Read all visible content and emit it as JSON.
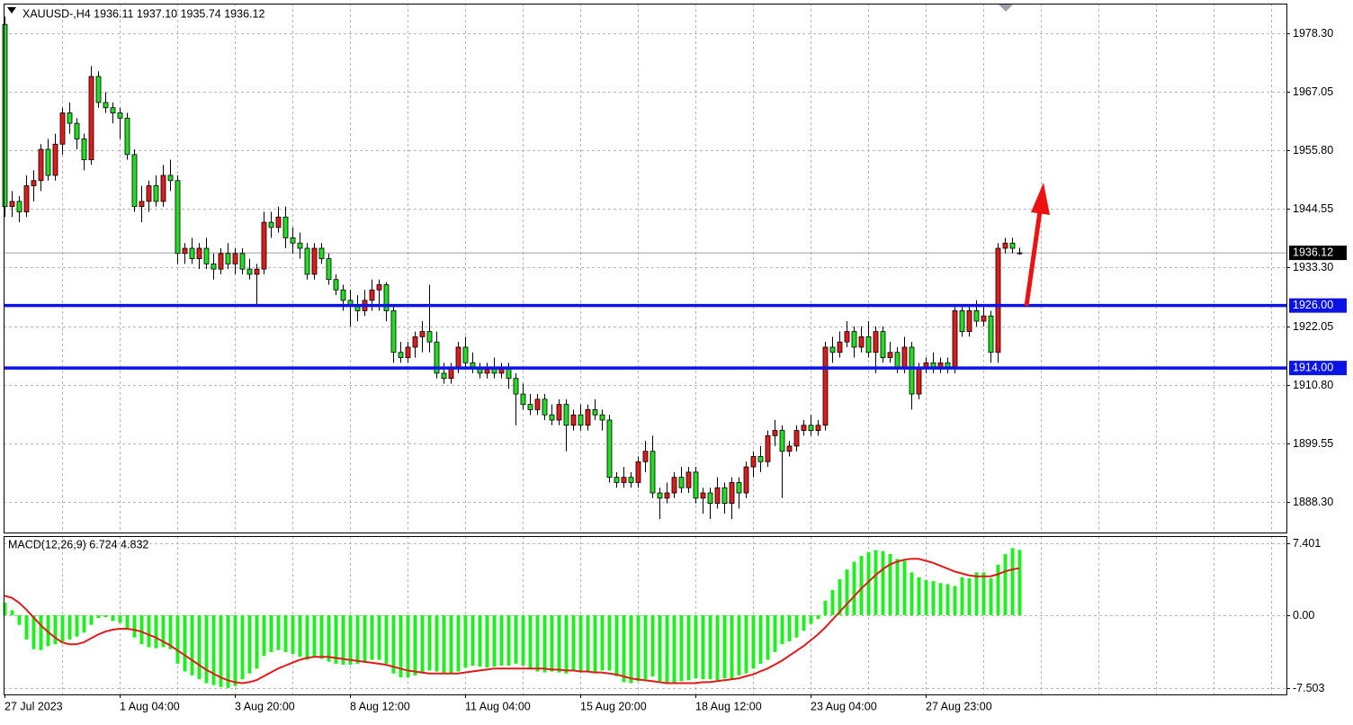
{
  "chart_data": {
    "type": "candlestick",
    "title": "XAUUSD-,H4  1936.11 1937.10 1935.74 1936.12",
    "bull_color": "#e01b1b",
    "bear_color": "#22dd22",
    "ylim": [
      1882.4,
      1984.0
    ],
    "yticks": [
      {
        "value": 1978.3,
        "label": "1978.30"
      },
      1967.05,
      {
        "value": 1955.8,
        "label": "1955.80"
      },
      1944.55,
      {
        "value": 1933.3,
        "label": "1933.30"
      },
      1922.05,
      {
        "value": 1910.8,
        "label": "1910.80"
      },
      1899.55,
      {
        "value": 1888.3,
        "label": "1888.30"
      }
    ],
    "grid": true,
    "last_price": 1936.12,
    "levels": [
      {
        "value": 1926,
        "label": "1926.00"
      },
      {
        "value": 1914,
        "label": "1914.00"
      }
    ],
    "level_color": "#0a14e6",
    "categories": [
      "27 Jul 2023",
      null,
      null,
      null,
      null,
      null,
      null,
      null,
      null,
      null,
      null,
      null,
      null,
      null,
      null,
      null,
      "1 Aug 04:00",
      null,
      null,
      null,
      null,
      null,
      null,
      null,
      null,
      null,
      null,
      null,
      null,
      null,
      null,
      null,
      "3 Aug 20:00",
      null,
      null,
      null,
      null,
      null,
      null,
      null,
      null,
      null,
      null,
      null,
      null,
      null,
      null,
      null,
      "8 Aug 12:00",
      null,
      null,
      null,
      null,
      null,
      null,
      null,
      null,
      null,
      null,
      null,
      null,
      null,
      null,
      null,
      "11 Aug 04:00",
      null,
      null,
      null,
      null,
      null,
      null,
      null,
      null,
      null,
      null,
      null,
      null,
      null,
      null,
      null,
      "15 Aug 20:00",
      null,
      null,
      null,
      null,
      null,
      null,
      null,
      null,
      null,
      null,
      null,
      null,
      null,
      null,
      null,
      "18 Aug 12:00",
      null,
      null,
      null,
      null,
      null,
      null,
      null,
      null,
      null,
      null,
      null,
      null,
      null,
      null,
      null,
      "23 Aug 04:00",
      null,
      null,
      null,
      null,
      null,
      null,
      null,
      null,
      null,
      null,
      null,
      null,
      null,
      null,
      null,
      "27 Aug 23:00",
      null,
      null,
      null,
      null,
      null,
      null,
      null,
      null,
      null,
      null,
      null,
      null,
      null
    ],
    "candles": [
      [
        1980,
        1981.5,
        1943,
        1945
      ],
      [
        1945,
        1948,
        1943,
        1946
      ],
      [
        1946,
        1947,
        1942,
        1944
      ],
      [
        1944,
        1951,
        1943,
        1949
      ],
      [
        1949,
        1952,
        1946,
        1950
      ],
      [
        1950,
        1957,
        1948,
        1956
      ],
      [
        1956,
        1958,
        1950,
        1951
      ],
      [
        1951,
        1959,
        1950,
        1957
      ],
      [
        1957,
        1964,
        1955,
        1963
      ],
      [
        1963,
        1965,
        1959,
        1961
      ],
      [
        1961,
        1962,
        1956,
        1958
      ],
      [
        1958,
        1959,
        1952,
        1954
      ],
      [
        1954,
        1972,
        1953,
        1970
      ],
      [
        1970,
        1971,
        1964,
        1965
      ],
      [
        1965,
        1967,
        1963,
        1964
      ],
      [
        1964,
        1965,
        1961,
        1963
      ],
      [
        1963,
        1964,
        1958,
        1962
      ],
      [
        1962,
        1963,
        1954,
        1955
      ],
      [
        1955,
        1956,
        1944,
        1945
      ],
      [
        1945,
        1949,
        1942,
        1946
      ],
      [
        1946,
        1950,
        1944,
        1949
      ],
      [
        1949,
        1951,
        1945,
        1946
      ],
      [
        1946,
        1953,
        1945,
        1951
      ],
      [
        1951,
        1954,
        1948,
        1950
      ],
      [
        1950,
        1951,
        1934,
        1936
      ],
      [
        1936,
        1938,
        1934,
        1937
      ],
      [
        1937,
        1939,
        1934,
        1935
      ],
      [
        1935,
        1938,
        1933,
        1937
      ],
      [
        1937,
        1939,
        1933,
        1934
      ],
      [
        1934,
        1936,
        1931,
        1933
      ],
      [
        1933,
        1937,
        1932,
        1936
      ],
      [
        1936,
        1938,
        1933,
        1934
      ],
      [
        1934,
        1937,
        1932,
        1936
      ],
      [
        1936,
        1937,
        1932,
        1933
      ],
      [
        1933,
        1935,
        1931,
        1932
      ],
      [
        1932,
        1934,
        1926,
        1933
      ],
      [
        1933,
        1944,
        1932,
        1942
      ],
      [
        1942,
        1944,
        1939,
        1941
      ],
      [
        1941,
        1945,
        1940,
        1943
      ],
      [
        1943,
        1945,
        1937,
        1939
      ],
      [
        1939,
        1941,
        1936,
        1938
      ],
      [
        1938,
        1940,
        1935,
        1937
      ],
      [
        1937,
        1938,
        1931,
        1932
      ],
      [
        1932,
        1938,
        1931,
        1937
      ],
      [
        1937,
        1938,
        1934,
        1935
      ],
      [
        1935,
        1936,
        1930,
        1931
      ],
      [
        1931,
        1932,
        1928,
        1929
      ],
      [
        1929,
        1930,
        1925,
        1927
      ],
      [
        1927,
        1929,
        1922,
        1926
      ],
      [
        1926,
        1928,
        1923,
        1925
      ],
      [
        1925,
        1929,
        1924,
        1927
      ],
      [
        1927,
        1931,
        1925,
        1929
      ],
      [
        1929,
        1931,
        1925,
        1930
      ],
      [
        1930,
        1930.5,
        1923,
        1925
      ],
      [
        1925,
        1926,
        1915,
        1917
      ],
      [
        1917,
        1919,
        1915,
        1916
      ],
      [
        1916,
        1919,
        1915,
        1918
      ],
      [
        1918,
        1921,
        1916,
        1920
      ],
      [
        1920,
        1923,
        1917,
        1921
      ],
      [
        1921,
        1930,
        1917,
        1919
      ],
      [
        1919,
        1921,
        1912,
        1913
      ],
      [
        1913,
        1915,
        1911,
        1912
      ],
      [
        1912,
        1915,
        1911,
        1914
      ],
      [
        1914,
        1919,
        1913,
        1918
      ],
      [
        1918,
        1920,
        1914,
        1915
      ],
      [
        1915,
        1917,
        1913,
        1914
      ],
      [
        1914,
        1915,
        1912,
        1913
      ],
      [
        1913,
        1915,
        1912,
        1914
      ],
      [
        1914,
        1916,
        1912,
        1913
      ],
      [
        1913,
        1915,
        1912,
        1914
      ],
      [
        1914,
        1915,
        1910,
        1912
      ],
      [
        1912,
        1913,
        1903,
        1909
      ],
      [
        1909,
        1911,
        1906,
        1907
      ],
      [
        1907,
        1909,
        1905,
        1906
      ],
      [
        1906,
        1909,
        1905,
        1908
      ],
      [
        1908,
        1909,
        1904,
        1905
      ],
      [
        1905,
        1907,
        1903,
        1904
      ],
      [
        1904,
        1908,
        1903,
        1907
      ],
      [
        1907,
        1908,
        1898,
        1903
      ],
      [
        1903,
        1906,
        1902,
        1905
      ],
      [
        1905,
        1907,
        1902,
        1903
      ],
      [
        1903,
        1907,
        1902,
        1906
      ],
      [
        1906,
        1908,
        1904,
        1905
      ],
      [
        1905,
        1906,
        1902,
        1904
      ],
      [
        1904,
        1905,
        1892,
        1893
      ],
      [
        1893,
        1894,
        1891,
        1892
      ],
      [
        1892,
        1895,
        1891,
        1893
      ],
      [
        1893,
        1894,
        1891,
        1892
      ],
      [
        1892,
        1897,
        1891,
        1896
      ],
      [
        1896,
        1900,
        1894,
        1898
      ],
      [
        1898,
        1901,
        1889,
        1890
      ],
      [
        1890,
        1891,
        1885,
        1889
      ],
      [
        1889,
        1892,
        1888,
        1890
      ],
      [
        1890,
        1894,
        1889,
        1893
      ],
      [
        1893,
        1895,
        1890,
        1891
      ],
      [
        1891,
        1895,
        1890,
        1894
      ],
      [
        1894,
        1895,
        1888,
        1889
      ],
      [
        1889,
        1891,
        1886,
        1890
      ],
      [
        1890,
        1891,
        1885,
        1888
      ],
      [
        1888,
        1893,
        1887,
        1891
      ],
      [
        1891,
        1892,
        1886,
        1888
      ],
      [
        1888,
        1893,
        1885,
        1892
      ],
      [
        1892,
        1893,
        1887,
        1890
      ],
      [
        1890,
        1896,
        1889,
        1895
      ],
      [
        1895,
        1898,
        1893,
        1897
      ],
      [
        1897,
        1899,
        1894,
        1896
      ],
      [
        1896,
        1902,
        1895,
        1901
      ],
      [
        1901,
        1904,
        1899,
        1902
      ],
      [
        1902,
        1903,
        1889,
        1898
      ],
      [
        1898,
        1900,
        1897,
        1899
      ],
      [
        1899,
        1903,
        1898,
        1902
      ],
      [
        1902,
        1904,
        1901,
        1903
      ],
      [
        1903,
        1905,
        1901,
        1902
      ],
      [
        1902,
        1904,
        1901,
        1903
      ],
      [
        1903,
        1919,
        1902,
        1918
      ],
      [
        1918,
        1920,
        1915,
        1917
      ],
      [
        1917,
        1921,
        1916,
        1919
      ],
      [
        1919,
        1923,
        1918,
        1921
      ],
      [
        1921,
        1922,
        1916,
        1918
      ],
      [
        1918,
        1922,
        1917,
        1920
      ],
      [
        1920,
        1923,
        1916,
        1917
      ],
      [
        1917,
        1922,
        1913,
        1921
      ],
      [
        1921,
        1922,
        1915,
        1916
      ],
      [
        1916,
        1919,
        1915,
        1917
      ],
      [
        1917,
        1918,
        1913,
        1914
      ],
      [
        1914,
        1920,
        1913,
        1918
      ],
      [
        1918,
        1919,
        1906,
        1909
      ],
      [
        1909,
        1915,
        1908,
        1914
      ],
      [
        1914,
        1916,
        1913,
        1915
      ],
      [
        1915,
        1917,
        1913,
        1914
      ],
      [
        1914,
        1916,
        1913,
        1915
      ],
      [
        1915,
        1916,
        1913,
        1914
      ],
      [
        1914,
        1926,
        1913,
        1925
      ],
      [
        1925,
        1926,
        1920,
        1921
      ],
      [
        1921,
        1926,
        1920,
        1925
      ],
      [
        1925,
        1927,
        1922,
        1923
      ],
      [
        1923,
        1926,
        1922,
        1924
      ],
      [
        1924,
        1925,
        1915,
        1917
      ],
      [
        1917,
        1938,
        1915,
        1937
      ],
      [
        1937,
        1939,
        1936,
        1938
      ],
      [
        1938,
        1939,
        1936,
        1937
      ],
      [
        1936.11,
        1937.1,
        1935.74,
        1936.12
      ]
    ],
    "macd": {
      "label": "MACD(12,26,9) 6.724 4.832",
      "ylim": [
        -8.16,
        8.14
      ],
      "yticks": [
        7.401,
        {
          "value": 0,
          "label": "0.00"
        },
        -7.503
      ],
      "series": [
        {
          "color": "#22ee22",
          "values": [
            1.3,
            0.5,
            -1.0,
            -2.5,
            -3.5,
            -3.6,
            -3.2,
            -3.0,
            -2.7,
            -2.5,
            -2.2,
            -1.8,
            -1.0,
            -0.3,
            -0.2,
            -0.6,
            -0.8,
            -1.4,
            -2.3,
            -3.0,
            -3.3,
            -3.4,
            -3.3,
            -3.5,
            -5.0,
            -5.8,
            -6.2,
            -6.6,
            -7.0,
            -7.2,
            -7.4,
            -7.5,
            -7.3,
            -6.6,
            -6.0,
            -5.5,
            -4.2,
            -3.8,
            -3.6,
            -3.8,
            -4.0,
            -4.3,
            -4.6,
            -4.3,
            -4.5,
            -4.8,
            -5.0,
            -5.1,
            -5.1,
            -5.0,
            -4.9,
            -4.6,
            -4.6,
            -5.0,
            -6.0,
            -6.4,
            -6.4,
            -6.2,
            -6.0,
            -5.7,
            -5.8,
            -6.0,
            -6.0,
            -5.8,
            -5.4,
            -5.2,
            -5.3,
            -5.4,
            -5.3,
            -5.2,
            -5.2,
            -5.0,
            -5.2,
            -5.6,
            -5.8,
            -5.9,
            -5.8,
            -5.9,
            -6.0,
            -5.8,
            -5.9,
            -5.8,
            -5.9,
            -5.7,
            -5.7,
            -6.3,
            -6.9,
            -7.0,
            -6.8,
            -6.6,
            -6.3,
            -6.8,
            -7.0,
            -7.0,
            -6.8,
            -6.7,
            -6.5,
            -6.6,
            -6.6,
            -6.7,
            -6.5,
            -6.6,
            -6.2,
            -6.0,
            -5.5,
            -5.0,
            -4.6,
            -3.8,
            -3.0,
            -2.7,
            -2.3,
            -1.6,
            -0.9,
            -0.4,
            1.5,
            2.6,
            3.7,
            4.7,
            5.5,
            6.1,
            6.5,
            6.7,
            6.6,
            6.3,
            5.8,
            5.6,
            4.4,
            3.9,
            3.6,
            3.5,
            3.3,
            3.2,
            3.0,
            3.9,
            3.8,
            4.4,
            4.4,
            3.8,
            5.2,
            6.3,
            6.9,
            6.724
          ]
        },
        {
          "color": "#e01b1b",
          "values": [
            2.0,
            1.8,
            1.3,
            0.6,
            -0.2,
            -1.0,
            -1.7,
            -2.3,
            -2.8,
            -3.0,
            -3.0,
            -2.8,
            -2.4,
            -2.0,
            -1.7,
            -1.5,
            -1.4,
            -1.4,
            -1.5,
            -1.7,
            -2.0,
            -2.3,
            -2.7,
            -3.1,
            -3.6,
            -4.1,
            -4.6,
            -5.1,
            -5.6,
            -6.0,
            -6.4,
            -6.7,
            -6.9,
            -7.0,
            -6.9,
            -6.7,
            -6.3,
            -5.9,
            -5.5,
            -5.2,
            -4.9,
            -4.6,
            -4.4,
            -4.3,
            -4.3,
            -4.3,
            -4.4,
            -4.5,
            -4.6,
            -4.7,
            -4.8,
            -4.9,
            -5.0,
            -5.1,
            -5.3,
            -5.5,
            -5.7,
            -5.8,
            -5.9,
            -6.0,
            -6.0,
            -6.0,
            -6.0,
            -6.0,
            -5.9,
            -5.8,
            -5.7,
            -5.6,
            -5.5,
            -5.5,
            -5.5,
            -5.5,
            -5.5,
            -5.5,
            -5.5,
            -5.5,
            -5.6,
            -5.6,
            -5.7,
            -5.7,
            -5.8,
            -5.8,
            -5.9,
            -5.9,
            -6.0,
            -6.1,
            -6.3,
            -6.5,
            -6.6,
            -6.7,
            -6.8,
            -6.9,
            -7.0,
            -7.0,
            -7.0,
            -7.0,
            -7.0,
            -6.9,
            -6.9,
            -6.8,
            -6.7,
            -6.6,
            -6.5,
            -6.3,
            -6.1,
            -5.8,
            -5.5,
            -5.1,
            -4.7,
            -4.2,
            -3.7,
            -3.2,
            -2.6,
            -2.0,
            -1.3,
            -0.5,
            0.3,
            1.1,
            1.9,
            2.7,
            3.4,
            4.1,
            4.7,
            5.2,
            5.5,
            5.7,
            5.8,
            5.8,
            5.6,
            5.4,
            5.1,
            4.8,
            4.5,
            4.3,
            4.1,
            4.0,
            4.0,
            4.0,
            4.2,
            4.5,
            4.7,
            4.832
          ]
        }
      ]
    }
  }
}
